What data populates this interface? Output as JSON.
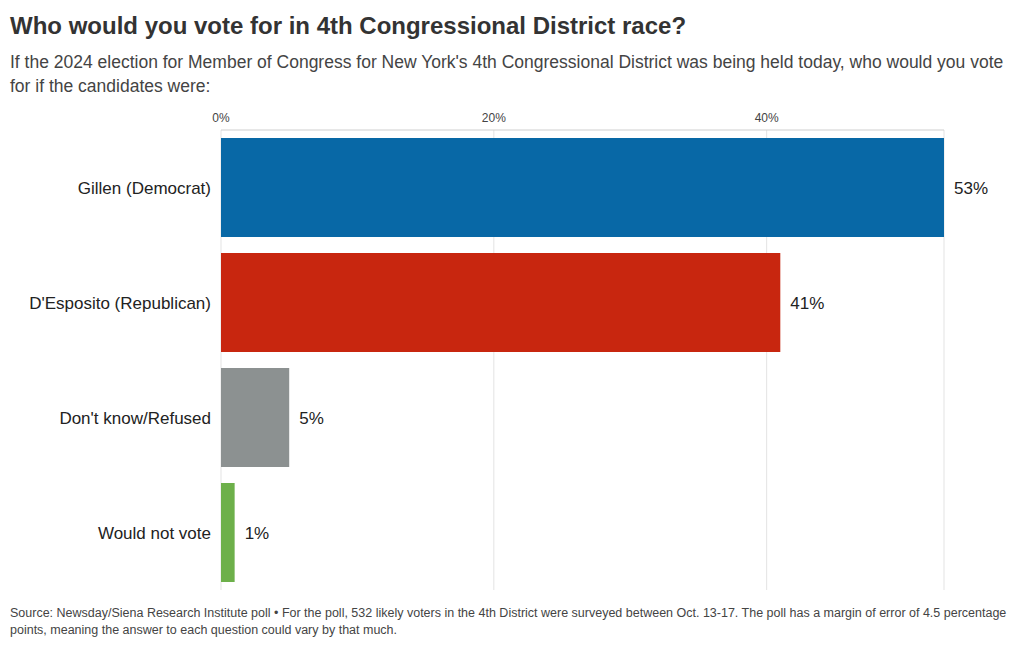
{
  "chart_data": {
    "type": "bar",
    "title": "Who would you vote for in 4th Congressional District race?",
    "subtitle": "If the 2024 election for Member of Congress for New York's 4th Congressional District was being held today, who would you vote for if the candidates were:",
    "source": "Source: Newsday/Siena Research Institute poll • For the poll, 532 likely voters in the 4th District were surveyed between Oct. 13-17. The poll has a margin of error of 4.5 percentage points, meaning the answer to each question could vary by that much.",
    "categories": [
      "Gillen (Democrat)",
      "D'Esposito (Republican)",
      "Don't know/Refused",
      "Would not vote"
    ],
    "values": [
      53,
      41,
      5,
      1
    ],
    "value_labels": [
      "53%",
      "41%",
      "5%",
      "1%"
    ],
    "colors": [
      "#0868a6",
      "#c8260f",
      "#8c9191",
      "#6db04a"
    ],
    "xlim": [
      0,
      53
    ],
    "xticks": [
      {
        "value": 0,
        "label": "0%"
      },
      {
        "value": 20,
        "label": "20%"
      },
      {
        "value": 40,
        "label": "40%"
      }
    ],
    "orientation": "horizontal",
    "grid": true,
    "data_labels": true
  }
}
